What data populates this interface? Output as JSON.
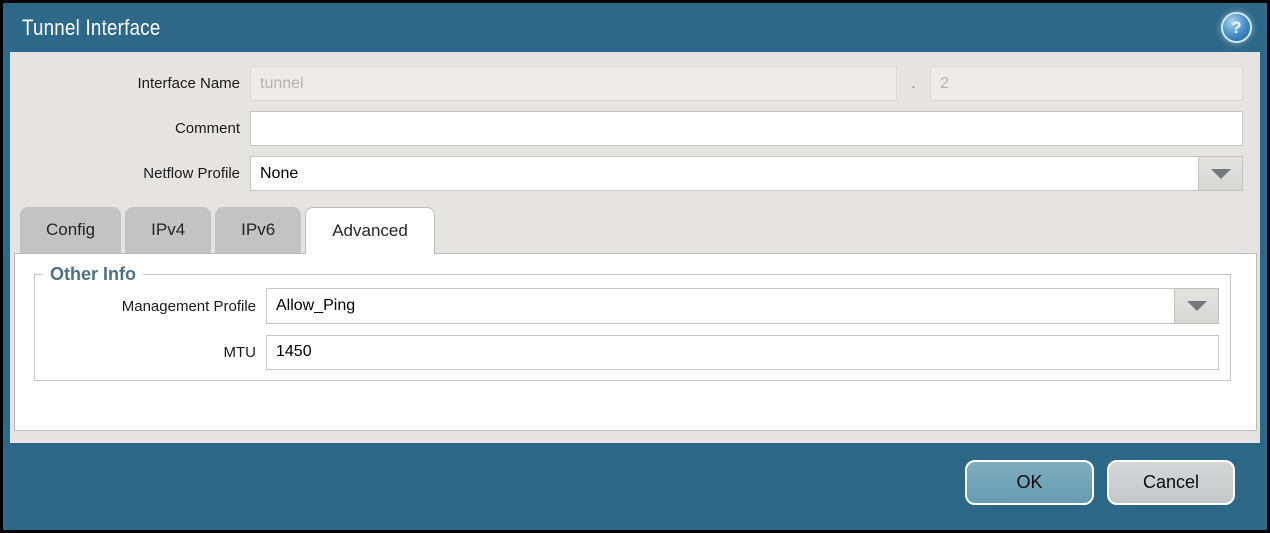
{
  "dialog": {
    "title": "Tunnel Interface"
  },
  "icons": {
    "help_glyph": "?"
  },
  "form": {
    "interface_name": {
      "label": "Interface Name",
      "value": "tunnel",
      "separator": ".",
      "subinterface_value": "2"
    },
    "comment": {
      "label": "Comment",
      "value": ""
    },
    "netflow_profile": {
      "label": "Netflow Profile",
      "value": "None"
    }
  },
  "tabs": [
    {
      "label": "Config",
      "active": false
    },
    {
      "label": "IPv4",
      "active": false
    },
    {
      "label": "IPv6",
      "active": false
    },
    {
      "label": "Advanced",
      "active": true
    }
  ],
  "advanced_tab": {
    "section_title": "Other Info",
    "management_profile": {
      "label": "Management Profile",
      "value": "Allow_Ping"
    },
    "mtu": {
      "label": "MTU",
      "value": "1450"
    }
  },
  "footer": {
    "ok_label": "OK",
    "cancel_label": "Cancel"
  },
  "colors": {
    "chrome": "#2e6889",
    "section_title": "#4e7086",
    "ok_button": "#659cb1",
    "cancel_button": "#c4c8c8"
  }
}
